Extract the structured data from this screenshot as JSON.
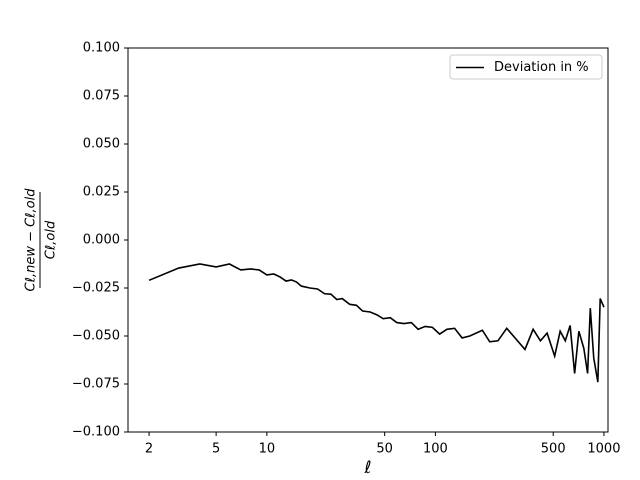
{
  "chart_data": {
    "type": "line",
    "xlabel": "ℓ",
    "ylabel_numerator": "Cℓ,new − Cℓ,old",
    "ylabel_denominator": "Cℓ,old",
    "xscale": "log",
    "xlim": [
      1.5,
      1057
    ],
    "xticks": [
      2,
      5,
      10,
      50,
      100,
      500,
      1000
    ],
    "ylim": [
      -0.1,
      0.1
    ],
    "yticks": [
      {
        "value": -0.1,
        "label": "−0.100"
      },
      {
        "value": -0.075,
        "label": "−0.075"
      },
      {
        "value": -0.05,
        "label": "−0.050"
      },
      {
        "value": -0.025,
        "label": "−0.025"
      },
      {
        "value": 0,
        "label": "0.000"
      },
      {
        "value": 0.025,
        "label": "0.025"
      },
      {
        "value": 0.05,
        "label": "0.050"
      },
      {
        "value": 0.075,
        "label": "0.075"
      },
      {
        "value": 0.1,
        "label": "0.100"
      }
    ],
    "legend": "upper right",
    "series": [
      {
        "name": "Deviation in %",
        "color": "#000000",
        "x": [
          2,
          3,
          4,
          5,
          6,
          7,
          8,
          9,
          10,
          11,
          12,
          13,
          14,
          15,
          16,
          18,
          20,
          22,
          24,
          26,
          28,
          31,
          34,
          37,
          41,
          45,
          49,
          54,
          59,
          65,
          72,
          79,
          87,
          96,
          106,
          117,
          130,
          144,
          160,
          190,
          210,
          235,
          265,
          300,
          340,
          380,
          420,
          460,
          510,
          550,
          590,
          630,
          670,
          710,
          760,
          800,
          830,
          870,
          920,
          950,
          1000
        ],
        "values": [
          -0.021,
          -0.0146,
          -0.0125,
          -0.014,
          -0.0125,
          -0.0156,
          -0.0151,
          -0.0156,
          -0.0182,
          -0.0177,
          -0.0193,
          -0.0214,
          -0.0208,
          -0.0219,
          -0.024,
          -0.025,
          -0.0255,
          -0.028,
          -0.0282,
          -0.031,
          -0.0305,
          -0.0335,
          -0.034,
          -0.037,
          -0.0375,
          -0.039,
          -0.041,
          -0.0405,
          -0.043,
          -0.0435,
          -0.043,
          -0.0465,
          -0.045,
          -0.0455,
          -0.049,
          -0.0465,
          -0.046,
          -0.051,
          -0.05,
          -0.047,
          -0.053,
          -0.0525,
          -0.046,
          -0.0515,
          -0.057,
          -0.0465,
          -0.0525,
          -0.0485,
          -0.0605,
          -0.0475,
          -0.0525,
          -0.0445,
          -0.0695,
          -0.0475,
          -0.0565,
          -0.0695,
          -0.0355,
          -0.0615,
          -0.074,
          -0.0305,
          -0.035
        ]
      }
    ]
  }
}
